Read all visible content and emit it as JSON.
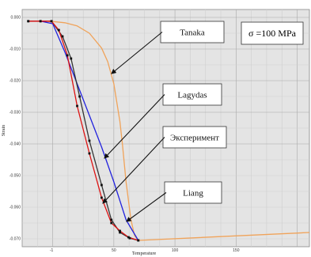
{
  "chart_data": {
    "type": "line",
    "title": "",
    "xlabel": "Temperature",
    "ylabel": "Strain",
    "xlim": [
      -25,
      210
    ],
    "ylim": [
      -0.0725,
      0.0025
    ],
    "x_ticks": [
      -1,
      50,
      100,
      150
    ],
    "y_ticks": [
      0.0,
      -0.01,
      -0.02,
      -0.03,
      -0.04,
      -0.05,
      -0.06,
      -0.07
    ],
    "y_tick_labels": [
      "0.000",
      "-0.010",
      "-0.020",
      "-0.030",
      "-0.040",
      "-0.050",
      "-0.060",
      "-0.070"
    ],
    "grid": true,
    "series": [
      {
        "name": "Tanaka",
        "color": "#f0a35a",
        "markers": false,
        "x": [
          -20,
          -10,
          0,
          10,
          20,
          30,
          40,
          45,
          50,
          55,
          57,
          60,
          64,
          67,
          70,
          210
        ],
        "y": [
          -0.0012,
          -0.0012,
          -0.0013,
          -0.0017,
          -0.0027,
          -0.005,
          -0.0097,
          -0.014,
          -0.021,
          -0.033,
          -0.04,
          -0.052,
          -0.064,
          -0.069,
          -0.0705,
          -0.068
        ]
      },
      {
        "name": "Lagydas",
        "color": "#2222dd",
        "markers": false,
        "x": [
          -20,
          -10,
          0,
          10,
          20,
          30,
          40,
          50,
          60,
          70
        ],
        "y": [
          -0.0012,
          -0.0012,
          -0.002,
          -0.011,
          -0.021,
          -0.031,
          -0.041,
          -0.052,
          -0.064,
          -0.0705
        ]
      },
      {
        "name": "Эксперимент",
        "color": "#333333",
        "markers": true,
        "x": [
          -20,
          -10,
          -1,
          8,
          15,
          22,
          30,
          40,
          48,
          55,
          63,
          70
        ],
        "y": [
          -0.0012,
          -0.0012,
          -0.0012,
          -0.006,
          -0.013,
          -0.025,
          -0.039,
          -0.053,
          -0.064,
          -0.068,
          -0.0698,
          -0.0705
        ]
      },
      {
        "name": "Liang",
        "color": "#dd1111",
        "markers": true,
        "x": [
          -20,
          -10,
          -1,
          5,
          12,
          20,
          30,
          40,
          48,
          55,
          62,
          70
        ],
        "y": [
          -0.0012,
          -0.0012,
          -0.0012,
          -0.004,
          -0.012,
          -0.028,
          -0.043,
          -0.057,
          -0.065,
          -0.0675,
          -0.0695,
          -0.0705
        ]
      }
    ],
    "annotations": [
      {
        "text": "Tanaka",
        "series": "Tanaka"
      },
      {
        "text": "Lagydas",
        "series": "Lagydas"
      },
      {
        "text": "Эксперимент",
        "series": "Эксперимент"
      },
      {
        "text": "Liang",
        "series": "Liang"
      },
      {
        "text": "σ =100 MPa",
        "kind": "condition"
      }
    ]
  }
}
